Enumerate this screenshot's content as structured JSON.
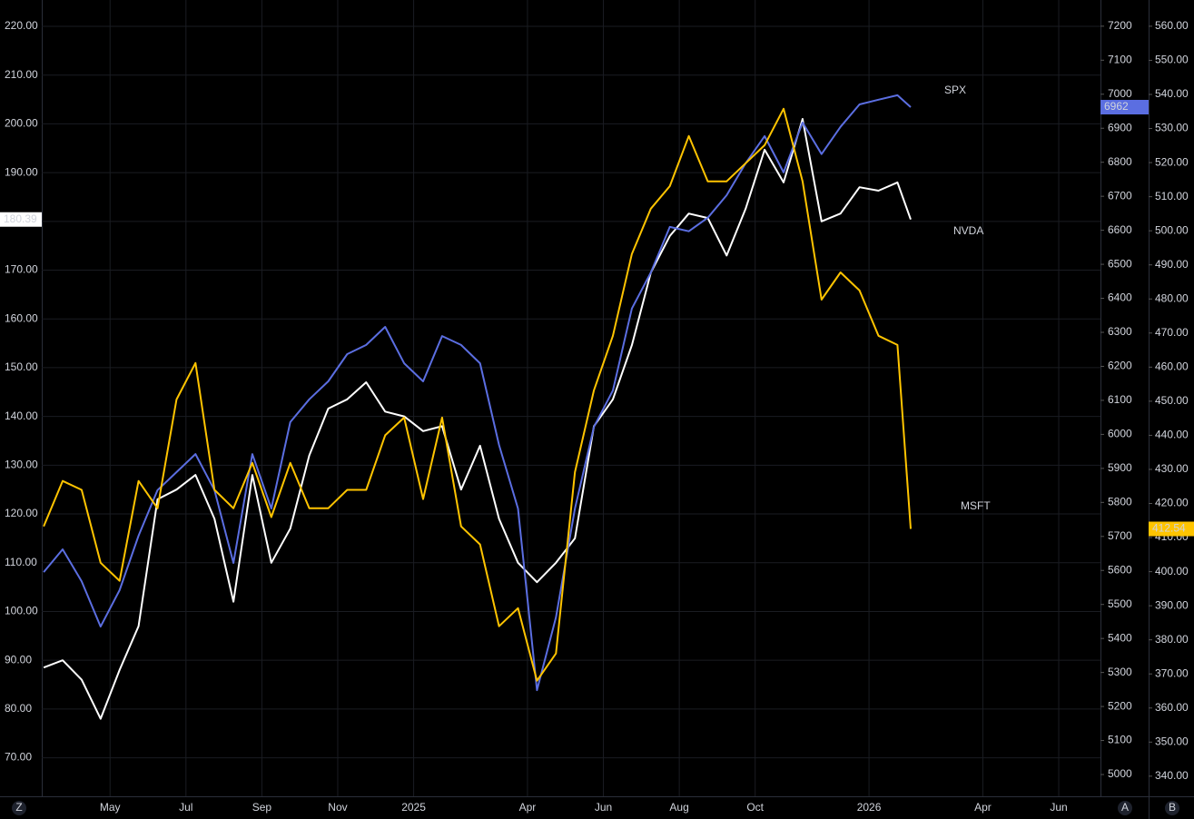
{
  "chart_data": {
    "type": "line",
    "x": [
      2.25,
      2.75,
      3.25,
      3.75,
      4.25,
      4.75,
      5.25,
      5.75,
      6.25,
      6.75,
      7.25,
      7.75,
      8.25,
      8.75,
      9.25,
      9.75,
      10.25,
      10.75,
      11.25,
      11.75,
      12.25,
      12.75,
      13.25,
      13.75,
      14.25,
      14.75,
      15.25,
      15.75,
      16.25,
      16.75,
      17.25,
      17.75,
      18.25,
      18.75,
      19.25,
      19.75,
      20.25,
      20.75,
      21.25,
      21.75,
      22.25,
      22.75,
      23.25,
      23.75,
      24.25,
      24.75,
      25.1
    ],
    "series": [
      {
        "name": "NVDA",
        "color": "#ffffff",
        "axis": "y",
        "values": [
          88.5,
          90,
          86,
          78,
          88,
          97,
          123,
          125,
          128,
          119,
          102,
          128,
          110,
          117,
          132,
          141.6,
          143.5,
          147,
          141,
          140,
          137,
          138,
          125,
          134,
          119,
          110,
          106,
          110,
          115,
          138,
          143.5,
          154.6,
          169.5,
          177,
          181.6,
          180.7,
          173,
          182.6,
          194.7,
          188,
          201,
          180,
          181.6,
          187,
          186.3,
          188,
          180.39
        ]
      },
      {
        "name": "SPX",
        "color": "#5b6ee1",
        "axis": "y2",
        "values": [
          5595,
          5662,
          5568,
          5435,
          5542,
          5702,
          5836,
          5889,
          5942,
          5836,
          5622,
          5942,
          5782,
          6036,
          6103,
          6156,
          6236,
          6263,
          6316,
          6209,
          6156,
          6289,
          6263,
          6209,
          5969,
          5782,
          5248,
          5462,
          5782,
          6022,
          6129,
          6370,
          6476,
          6610,
          6597,
          6637,
          6703,
          6797,
          6877,
          6770,
          6917,
          6824,
          6904,
          6970,
          6984,
          6997,
          6962
        ]
      },
      {
        "name": "MSFT",
        "color": "#ffc400",
        "axis": "y3",
        "values": [
          413.3,
          426.6,
          424,
          402.6,
          397.3,
          426.6,
          418.6,
          450.5,
          461.2,
          424,
          418.6,
          431.9,
          416,
          431.9,
          418.6,
          418.6,
          424,
          424,
          440,
          445.2,
          421.3,
          445.2,
          413.3,
          408,
          384,
          389.3,
          368,
          376,
          429.2,
          453.2,
          469.2,
          493.2,
          506.5,
          513.1,
          527.8,
          514.5,
          514.5,
          519.8,
          525.1,
          535.8,
          514.5,
          479.8,
          487.8,
          482.5,
          469.2,
          466.5,
          412.54
        ]
      }
    ],
    "xlim": [
      2.2,
      30.1
    ],
    "xticks": [
      {
        "value": 4,
        "label": "May"
      },
      {
        "value": 6,
        "label": "Jul"
      },
      {
        "value": 8,
        "label": "Sep"
      },
      {
        "value": 10,
        "label": "Nov"
      },
      {
        "value": 12,
        "label": "2025"
      },
      {
        "value": 15,
        "label": "Apr"
      },
      {
        "value": 17,
        "label": "Jun"
      },
      {
        "value": 19,
        "label": "Aug"
      },
      {
        "value": 21,
        "label": "Oct"
      },
      {
        "value": 24,
        "label": "2026"
      },
      {
        "value": 27,
        "label": "Apr"
      },
      {
        "value": 29,
        "label": "Jun"
      }
    ],
    "ylim": [
      62.1,
      225.4
    ],
    "yticks": [
      {
        "value": 70,
        "label": "70.00"
      },
      {
        "value": 80,
        "label": "80.00"
      },
      {
        "value": 90,
        "label": "90.00"
      },
      {
        "value": 100,
        "label": "100.00"
      },
      {
        "value": 110,
        "label": "110.00"
      },
      {
        "value": 120,
        "label": "120.00"
      },
      {
        "value": 130,
        "label": "130.00"
      },
      {
        "value": 140,
        "label": "140.00"
      },
      {
        "value": 150,
        "label": "150.00"
      },
      {
        "value": 160,
        "label": "160.00"
      },
      {
        "value": 170,
        "label": "170.00"
      },
      {
        "value": 180,
        "label": "180.00"
      },
      {
        "value": 190,
        "label": "190.00"
      },
      {
        "value": 200,
        "label": "200.00"
      },
      {
        "value": 210,
        "label": "210.00"
      },
      {
        "value": 220,
        "label": "220.00"
      }
    ],
    "y2lim": [
      4936,
      7277
    ],
    "y2ticks": [
      5000,
      5100,
      5200,
      5300,
      5400,
      5500,
      5600,
      5700,
      5800,
      5900,
      6000,
      6100,
      6200,
      6300,
      6400,
      6500,
      6600,
      6700,
      6800,
      6900,
      7000,
      7100,
      7200
    ],
    "y3lim": [
      334.1,
      567.7
    ],
    "y3ticks": [
      {
        "value": 340,
        "label": "340.00"
      },
      {
        "value": 350,
        "label": "350.00"
      },
      {
        "value": 360,
        "label": "360.00"
      },
      {
        "value": 370,
        "label": "370.00"
      },
      {
        "value": 380,
        "label": "380.00"
      },
      {
        "value": 390,
        "label": "390.00"
      },
      {
        "value": 400,
        "label": "400.00"
      },
      {
        "value": 410,
        "label": "410.00"
      },
      {
        "value": 420,
        "label": "420.00"
      },
      {
        "value": 430,
        "label": "430.00"
      },
      {
        "value": 440,
        "label": "440.00"
      },
      {
        "value": 450,
        "label": "450.00"
      },
      {
        "value": 460,
        "label": "460.00"
      },
      {
        "value": 470,
        "label": "470.00"
      },
      {
        "value": 480,
        "label": "480.00"
      },
      {
        "value": 490,
        "label": "490.00"
      },
      {
        "value": 500,
        "label": "500.00"
      },
      {
        "value": 510,
        "label": "510.00"
      },
      {
        "value": 520,
        "label": "520.00"
      },
      {
        "value": 530,
        "label": "530.00"
      },
      {
        "value": 540,
        "label": "540.00"
      },
      {
        "value": 550,
        "label": "550.00"
      },
      {
        "value": 560,
        "label": "560.00"
      }
    ],
    "annotations": [
      "SPX",
      "NVDA",
      "MSFT"
    ],
    "annotation_color": "#f7931e",
    "grid": true,
    "corner_buttons": [
      "Z",
      "A",
      "B"
    ]
  }
}
